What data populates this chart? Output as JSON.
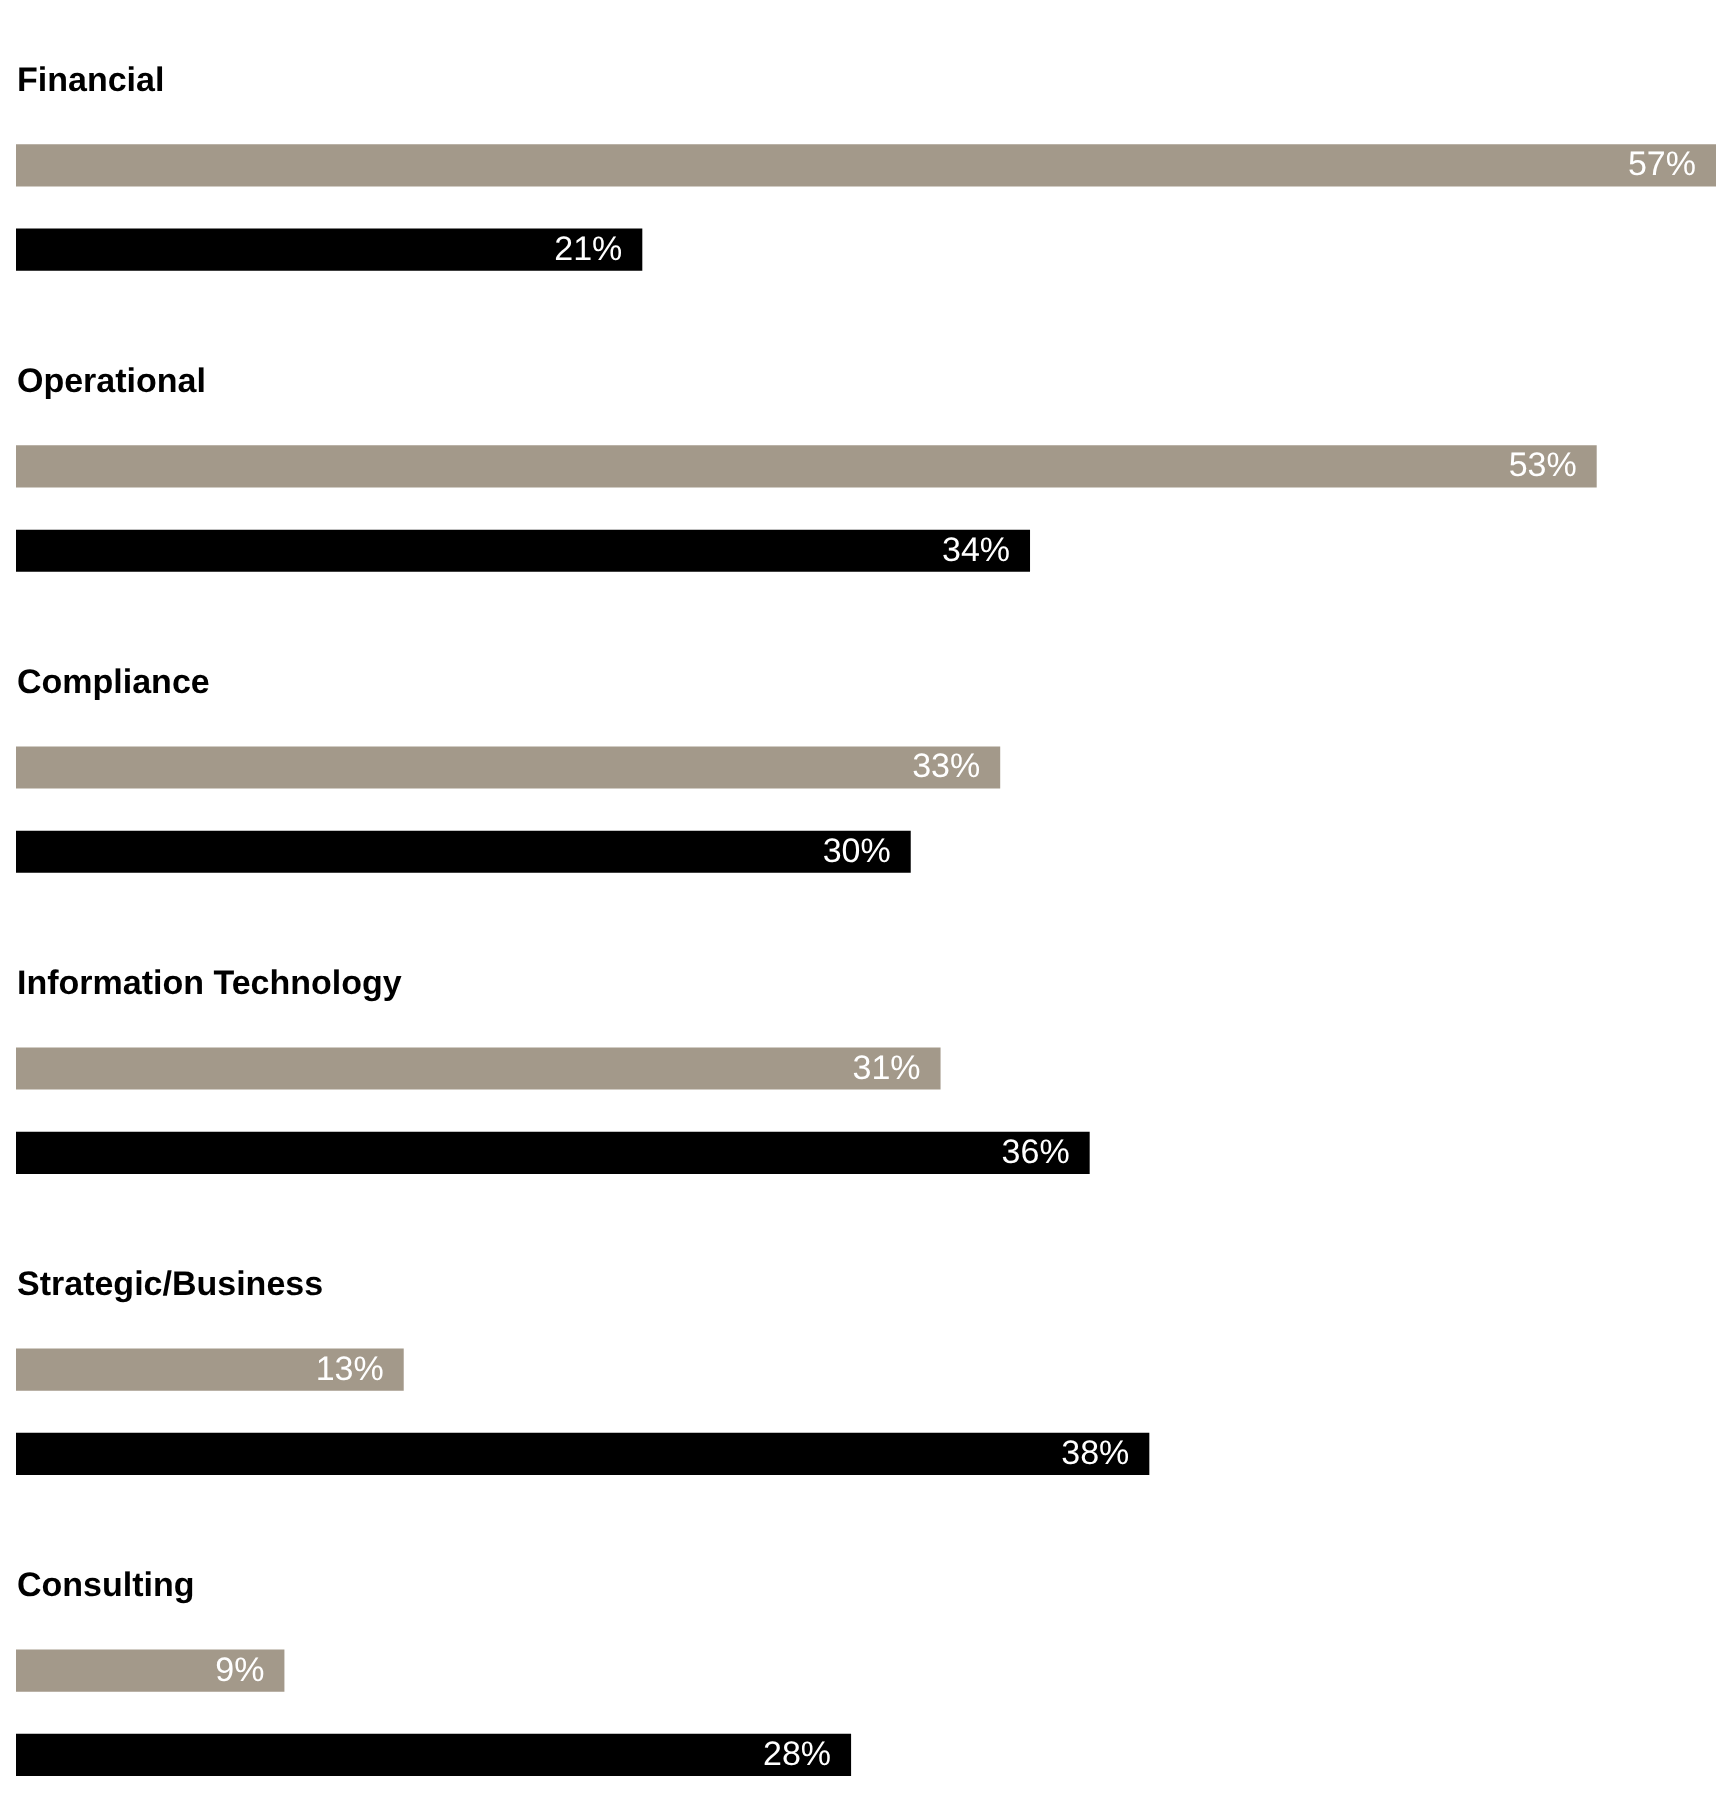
{
  "chart_data": {
    "type": "bar",
    "orientation": "horizontal",
    "categories": [
      "Financial",
      "Operational",
      "Compliance",
      "Information Technology",
      "Strategic/Business",
      "Consulting"
    ],
    "series": [
      {
        "color": "#a3998a",
        "values": [
          57,
          53,
          33,
          31,
          13,
          9
        ],
        "value_labels": [
          "57%",
          "53%",
          "33%",
          "31%",
          "13%",
          "9%"
        ]
      },
      {
        "color": "#000000",
        "values": [
          21,
          34,
          30,
          36,
          38,
          28
        ],
        "value_labels": [
          "21%",
          "34%",
          "30%",
          "36%",
          "38%",
          "28%"
        ]
      }
    ]
  }
}
